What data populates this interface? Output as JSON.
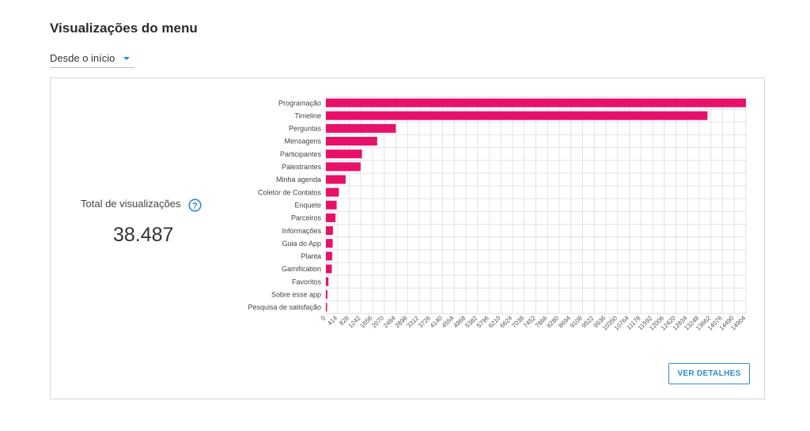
{
  "header": {
    "title": "Visualizações do menu"
  },
  "filter": {
    "selected": "Desde o início"
  },
  "summary": {
    "total_label": "Total de visualizações",
    "total_value": "38.487"
  },
  "actions": {
    "details_label": "VER DETALHES"
  },
  "colors": {
    "bar": "#e8116a",
    "accent": "#2a8ccf"
  },
  "chart_data": {
    "type": "bar",
    "orientation": "horizontal",
    "categories": [
      "Programação",
      "Timeline",
      "Perguntas",
      "Mensagens",
      "Participantes",
      "Palestrantes",
      "Minha agenda",
      "Coletor de Contatos",
      "Enquete",
      "Parceiros",
      "Informações",
      "Guia do App",
      "Planta",
      "Gamification",
      "Favoritos",
      "Sobre esse app",
      "Pesquisa de satisfação"
    ],
    "values": [
      14904,
      13540,
      2480,
      1820,
      1280,
      1230,
      700,
      460,
      380,
      340,
      250,
      240,
      220,
      210,
      90,
      55,
      40
    ],
    "xticks": [
      0,
      414,
      828,
      1242,
      1656,
      2070,
      2484,
      2898,
      3312,
      3726,
      4140,
      4554,
      4968,
      5382,
      5796,
      6210,
      6624,
      7038,
      7452,
      7866,
      8280,
      8694,
      9108,
      9522,
      9936,
      10350,
      10764,
      11178,
      11592,
      12006,
      12420,
      12834,
      13248,
      13662,
      14076,
      14490,
      14904
    ],
    "xlim": [
      0,
      14904
    ],
    "grid": true
  }
}
